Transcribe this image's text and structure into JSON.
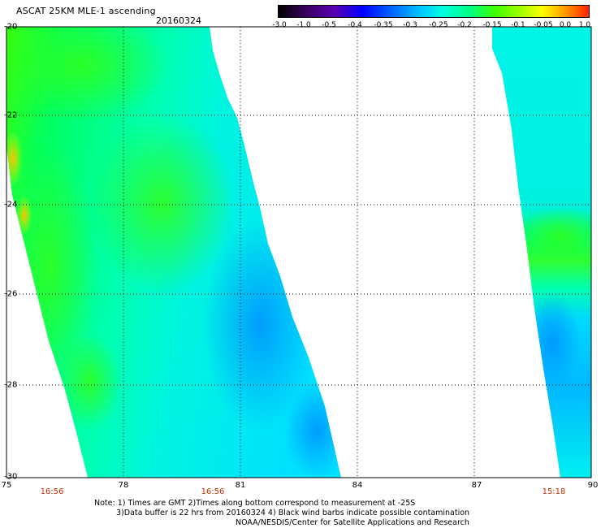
{
  "header": {
    "title": "ASCAT 25KM MLE-1 ascending",
    "date": "20160324"
  },
  "colorbar": {
    "labels": [
      "-3.0",
      "-1.0",
      "-0.5",
      "-0.4",
      "-0.35",
      "-0.3",
      "-0.25",
      "-0.2",
      "-0.15",
      "-0.1",
      "-0.05",
      "0.0",
      "1.0"
    ]
  },
  "axes": {
    "lat_labels": [
      "-20",
      "-22",
      "-24",
      "-26",
      "-28",
      "-30"
    ],
    "lon_labels": [
      "75",
      "78",
      "81",
      "84",
      "87",
      "90"
    ]
  },
  "pass_times": [
    "16:56",
    "16:56",
    "15:18"
  ],
  "notes": {
    "line1": "Note: 1) Times are GMT 2)Times along bottom correspond to measurement at -25S",
    "line2": "3)Data buffer is 22 hrs from 20160324 4) Black wind barbs indicate possible contamination",
    "line3": "NOAA/NESDIS/Center for Satellite Applications and Research"
  }
}
